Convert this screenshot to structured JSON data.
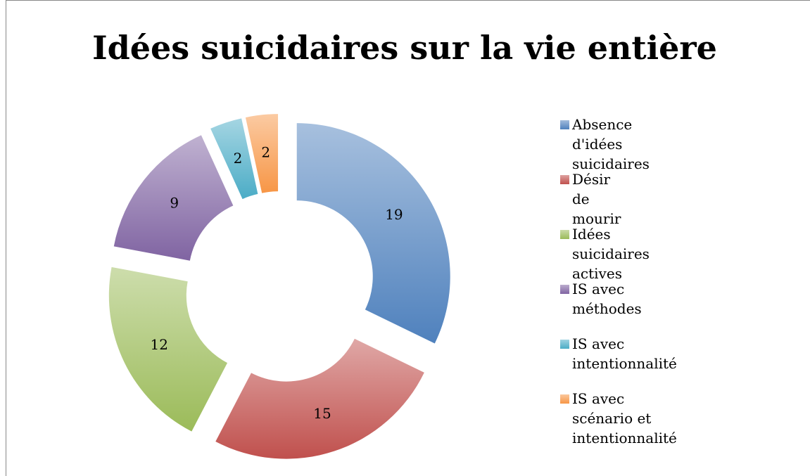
{
  "chart_data": {
    "type": "donut",
    "title": "Idées suicidaires sur la vie entière",
    "categories": [
      "Absence d'idées suicidaires",
      "Désir de mourir",
      "Idées suicidaires actives",
      "IS avec méthodes",
      "IS avec intentionnalité",
      "IS avec scénario et intentionnalité"
    ],
    "values": [
      19,
      15,
      12,
      9,
      2,
      2
    ],
    "colors": [
      "#4f81bd",
      "#c0504d",
      "#9bbb59",
      "#8064a2",
      "#4bacc6",
      "#f79646"
    ],
    "legend": "right"
  }
}
